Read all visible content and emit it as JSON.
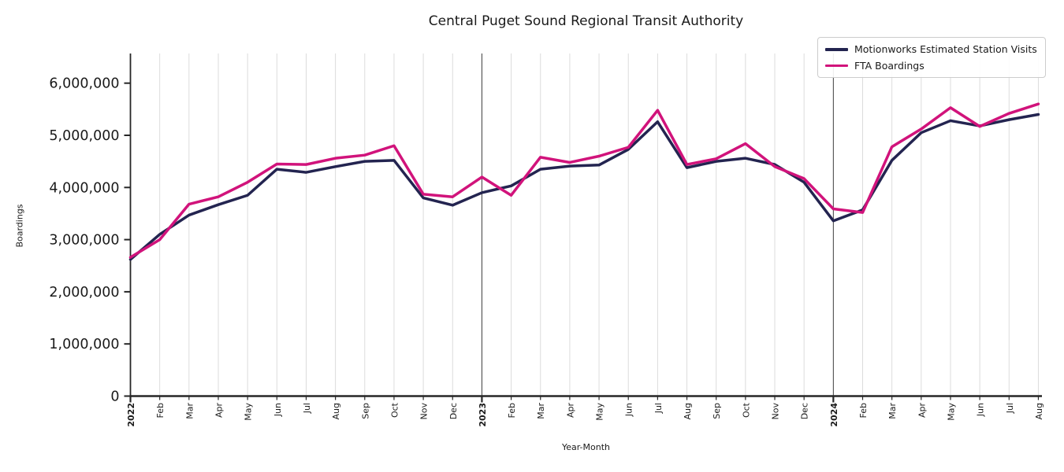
{
  "chart_data": {
    "type": "line",
    "title": "Central Puget Sound Regional Transit Authority",
    "xlabel": "Year-Month",
    "ylabel": "Boardings",
    "x_tick_labels": [
      "2022",
      "Feb",
      "Mar",
      "Apr",
      "May",
      "Jun",
      "Jul",
      "Aug",
      "Sep",
      "Oct",
      "Nov",
      "Dec",
      "2023",
      "Feb",
      "Mar",
      "Apr",
      "May",
      "Jun",
      "Jul",
      "Aug",
      "Sep",
      "Oct",
      "Nov",
      "Dec",
      "2024",
      "Feb",
      "Mar",
      "Apr",
      "May",
      "Jun",
      "Jul",
      "Aug"
    ],
    "year_tick_indexes": [
      0,
      12,
      24
    ],
    "year_line_indexes": [
      12,
      24
    ],
    "y_ticks": [
      0,
      1000000,
      2000000,
      3000000,
      4000000,
      5000000,
      6000000
    ],
    "y_tick_labels": [
      "0",
      "1,000,000",
      "2,000,000",
      "3,000,000",
      "4,000,000",
      "5,000,000",
      "6,000,000"
    ],
    "ylim": [
      0,
      6570000
    ],
    "grid": "vertical",
    "legend_position": "upper right",
    "series": [
      {
        "name": "Motionworks Estimated Station Visits",
        "color": "#232450",
        "values": [
          2620000,
          3100000,
          3470000,
          3670000,
          3850000,
          4350000,
          4290000,
          4400000,
          4500000,
          4520000,
          3800000,
          3660000,
          3900000,
          4030000,
          4350000,
          4410000,
          4430000,
          4730000,
          5260000,
          4380000,
          4500000,
          4560000,
          4440000,
          4100000,
          3360000,
          3570000,
          4520000,
          5050000,
          5280000,
          5180000,
          5300000,
          5400000
        ]
      },
      {
        "name": "FTA Boardings",
        "color": "#d1137b",
        "values": [
          2660000,
          3000000,
          3680000,
          3820000,
          4100000,
          4450000,
          4440000,
          4560000,
          4620000,
          4800000,
          3870000,
          3820000,
          4200000,
          3850000,
          4580000,
          4480000,
          4600000,
          4770000,
          5480000,
          4440000,
          4550000,
          4840000,
          4400000,
          4170000,
          3590000,
          3520000,
          4780000,
          5120000,
          5530000,
          5170000,
          5420000,
          5600000
        ]
      }
    ]
  }
}
